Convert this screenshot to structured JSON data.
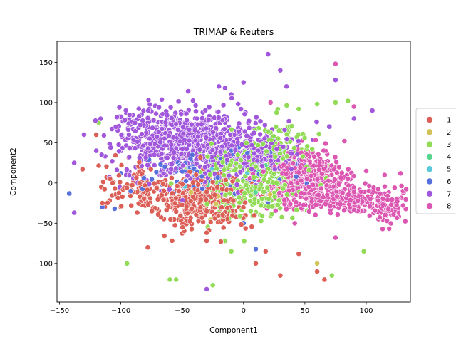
{
  "chart_data": {
    "type": "scatter",
    "title": "TRIMAP & Reuters",
    "xlabel": "Component1",
    "ylabel": "Component2",
    "xlim": [
      -152,
      136
    ],
    "ylim": [
      -148,
      176
    ],
    "xticks": [
      -150,
      -100,
      -50,
      0,
      50,
      100
    ],
    "yticks": [
      -100,
      -50,
      0,
      50,
      100,
      150
    ],
    "grid": false,
    "legend_position": "center-right (outside plot)",
    "point_edge_color": "#ffffff",
    "series": [
      {
        "name": "1",
        "color": "#db5f57",
        "clusters": [
          {
            "cx": -35,
            "cy": -20,
            "sx": 20,
            "sy": 20,
            "n": 360
          },
          {
            "cx": -85,
            "cy": -5,
            "sx": 18,
            "sy": 14,
            "n": 90
          }
        ],
        "points": [
          [
            -30,
            -72
          ],
          [
            -78,
            -80
          ],
          [
            30,
            -115
          ],
          [
            66,
            -120
          ],
          [
            45,
            -88
          ],
          [
            18,
            -85
          ],
          [
            -115,
            -25
          ],
          [
            10,
            -100
          ],
          [
            60,
            -110
          ],
          [
            -120,
            60
          ],
          [
            -100,
            -30
          ]
        ]
      },
      {
        "name": "2",
        "color": "#d3c257",
        "clusters": [
          {
            "cx": -20,
            "cy": -10,
            "sx": 25,
            "sy": 20,
            "n": 12
          }
        ],
        "points": [
          [
            60,
            -100
          ],
          [
            -40,
            40
          ]
        ]
      },
      {
        "name": "3",
        "color": "#91db57",
        "clusters": [
          {
            "cx": 5,
            "cy": 0,
            "sx": 22,
            "sy": 22,
            "n": 320
          },
          {
            "cx": 30,
            "cy": 40,
            "sx": 14,
            "sy": 20,
            "n": 110
          }
        ],
        "points": [
          [
            75,
            100
          ],
          [
            98,
            -85
          ],
          [
            72,
            -115
          ],
          [
            -60,
            -120
          ],
          [
            -55,
            -120
          ],
          [
            -95,
            -100
          ],
          [
            -25,
            -127
          ],
          [
            -10,
            -85
          ],
          [
            -118,
            75
          ],
          [
            85,
            102
          ],
          [
            60,
            98
          ],
          [
            45,
            92
          ],
          [
            65,
            40
          ],
          [
            -15,
            -72
          ],
          [
            40,
            -10
          ]
        ]
      },
      {
        "name": "4",
        "color": "#57d68d",
        "clusters": [
          {
            "cx": 10,
            "cy": 10,
            "sx": 20,
            "sy": 18,
            "n": 15
          }
        ],
        "points": []
      },
      {
        "name": "5",
        "color": "#57c9db",
        "clusters": [
          {
            "cx": -10,
            "cy": 20,
            "sx": 20,
            "sy": 15,
            "n": 8
          }
        ],
        "points": []
      },
      {
        "name": "6",
        "color": "#5770db",
        "clusters": [
          {
            "cx": -30,
            "cy": 10,
            "sx": 28,
            "sy": 15,
            "n": 110
          }
        ],
        "points": [
          [
            -142,
            -13
          ],
          [
            -105,
            -32
          ],
          [
            -100,
            12
          ],
          [
            -115,
            -30
          ],
          [
            0,
            -50
          ],
          [
            10,
            -82
          ],
          [
            -80,
            30
          ],
          [
            -10,
            40
          ]
        ]
      },
      {
        "name": "7",
        "color": "#a157db",
        "clusters": [
          {
            "cx": -35,
            "cy": 45,
            "sx": 30,
            "sy": 22,
            "n": 700
          },
          {
            "cx": 15,
            "cy": 30,
            "sx": 15,
            "sy": 15,
            "n": 120
          },
          {
            "cx": -75,
            "cy": 65,
            "sx": 20,
            "sy": 18,
            "n": 120
          }
        ],
        "points": [
          [
            -138,
            25
          ],
          [
            -138,
            -37
          ],
          [
            20,
            160
          ],
          [
            75,
            128
          ],
          [
            105,
            90
          ],
          [
            30,
            140
          ],
          [
            -30,
            -132
          ],
          [
            0,
            125
          ],
          [
            70,
            70
          ],
          [
            -120,
            40
          ],
          [
            35,
            120
          ],
          [
            90,
            80
          ],
          [
            -130,
            60
          ],
          [
            -10,
            110
          ],
          [
            -20,
            120
          ]
        ]
      },
      {
        "name": "8",
        "color": "#db57b2",
        "clusters": [
          {
            "cx": 50,
            "cy": 5,
            "sx": 17,
            "sy": 17,
            "n": 420
          },
          {
            "cx": 85,
            "cy": -20,
            "sx": 20,
            "sy": 8,
            "n": 220
          },
          {
            "cx": 115,
            "cy": -30,
            "sx": 8,
            "sy": 12,
            "n": 60
          }
        ],
        "points": [
          [
            128,
            12
          ],
          [
            130,
            -28
          ],
          [
            115,
            10
          ],
          [
            75,
            -68
          ],
          [
            90,
            95
          ],
          [
            75,
            148
          ],
          [
            45,
            50
          ],
          [
            22,
            100
          ],
          [
            110,
            -45
          ],
          [
            80,
            5
          ],
          [
            100,
            15
          ]
        ]
      }
    ]
  }
}
